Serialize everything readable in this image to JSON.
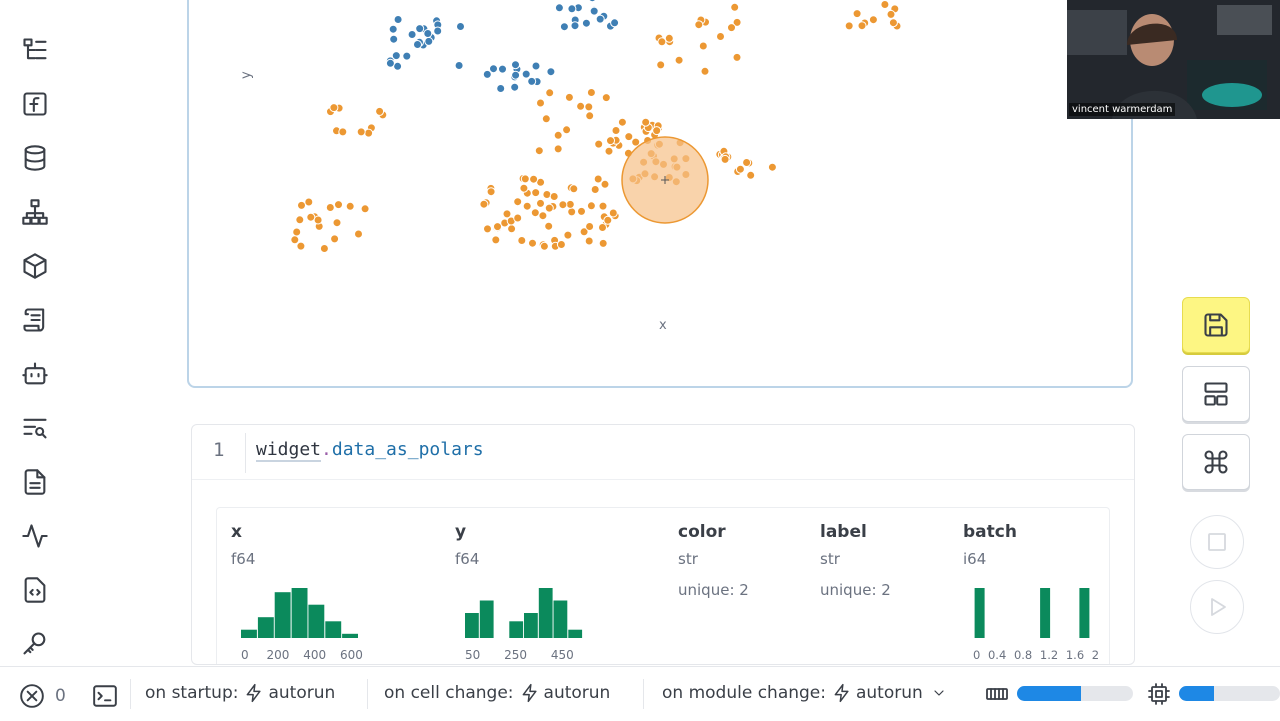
{
  "sidebar": {
    "items": [
      {
        "name": "file-tree-icon"
      },
      {
        "name": "function-icon"
      },
      {
        "name": "database-icon"
      },
      {
        "name": "dependency-graph-icon"
      },
      {
        "name": "package-icon"
      },
      {
        "name": "scroll-icon"
      },
      {
        "name": "bot-icon"
      },
      {
        "name": "search-list-icon"
      },
      {
        "name": "document-icon"
      },
      {
        "name": "activity-icon"
      },
      {
        "name": "code-snippet-icon"
      },
      {
        "name": "key-icon"
      }
    ]
  },
  "plot": {
    "x_axis_label": "x",
    "y_axis_label": "y",
    "colors": {
      "blue": "#3f7fb4",
      "orange": "#ec9833",
      "brush": "#f6c087"
    }
  },
  "code": {
    "line_number": "1",
    "object": "widget",
    "dot": ".",
    "attribute": "data_as_polars"
  },
  "table": {
    "columns": [
      {
        "name": "x",
        "dtype": "f64",
        "hist": [
          2,
          5,
          11,
          12,
          8,
          4,
          1
        ],
        "ticks": [
          "0",
          "200",
          "400",
          "600"
        ]
      },
      {
        "name": "y",
        "dtype": "f64",
        "hist": [
          6,
          9,
          0,
          4,
          6,
          12,
          9,
          2
        ],
        "ticks": [
          "50",
          "250",
          "450"
        ]
      },
      {
        "name": "color",
        "dtype": "str",
        "unique": "unique: 2"
      },
      {
        "name": "label",
        "dtype": "str",
        "unique": "unique: 2"
      },
      {
        "name": "batch",
        "dtype": "i64",
        "hist": [
          1,
          0,
          0,
          0,
          0,
          1,
          0,
          0,
          1
        ],
        "ticks": [
          "0",
          "0.4",
          "0.8",
          "1.2",
          "1.6",
          "2"
        ]
      }
    ],
    "bar_color": "#0b8a5c"
  },
  "toolbar": {
    "save": "save-icon",
    "layout": "layout-icon",
    "command": "command-icon",
    "stop": "stop-icon",
    "run": "play-icon",
    "save_color": "#fdf683"
  },
  "webcam": {
    "name": "vincent warmerdam"
  },
  "footer": {
    "error_count": "0",
    "startup_label": "on startup:",
    "startup_value": "autorun",
    "cell_change_label": "on cell change:",
    "cell_change_value": "autorun",
    "module_change_label": "on module change:",
    "module_change_value": "autorun",
    "memory_fraction": 0.55,
    "cpu_fraction": 0.35
  }
}
